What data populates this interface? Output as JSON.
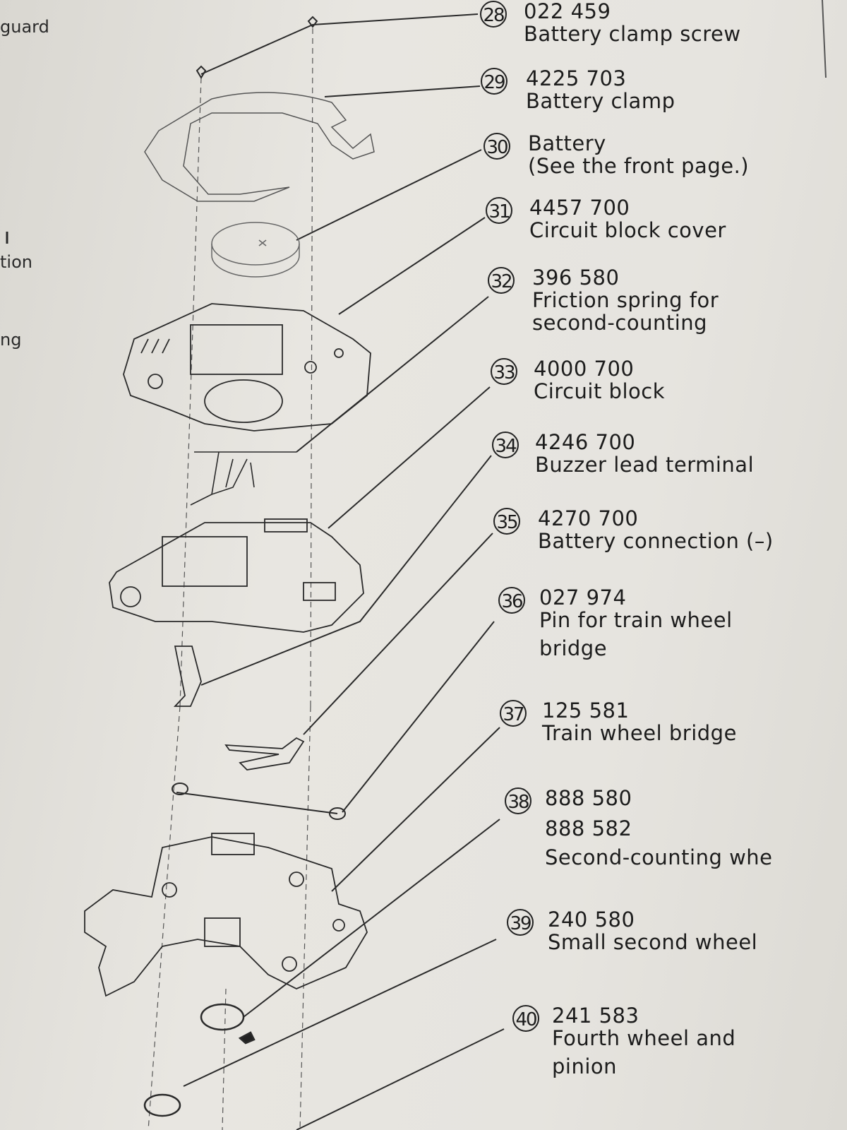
{
  "margin_fragments": [
    "guard",
    "tion",
    "ng"
  ],
  "parts": [
    {
      "ref": "28",
      "codes": [
        "022 459"
      ],
      "name": [
        "Battery clamp screw"
      ]
    },
    {
      "ref": "29",
      "codes": [
        "4225 703"
      ],
      "name": [
        "Battery clamp"
      ]
    },
    {
      "ref": "30",
      "codes": [
        "Battery"
      ],
      "name": [
        "(See the front page.)"
      ]
    },
    {
      "ref": "31",
      "codes": [
        "4457 700"
      ],
      "name": [
        "Circuit block cover"
      ]
    },
    {
      "ref": "32",
      "codes": [
        "396 580"
      ],
      "name": [
        "Friction spring for",
        "second-counting"
      ]
    },
    {
      "ref": "33",
      "codes": [
        "4000 700"
      ],
      "name": [
        "Circuit block"
      ]
    },
    {
      "ref": "34",
      "codes": [
        "4246 700"
      ],
      "name": [
        "Buzzer lead terminal"
      ]
    },
    {
      "ref": "35",
      "codes": [
        "4270 700"
      ],
      "name": [
        "Battery connection (–)"
      ]
    },
    {
      "ref": "36",
      "codes": [
        "027 974"
      ],
      "name": [
        "Pin for train wheel",
        "bridge"
      ]
    },
    {
      "ref": "37",
      "codes": [
        "125 581"
      ],
      "name": [
        "Train wheel bridge"
      ]
    },
    {
      "ref": "38",
      "codes": [
        "888 580",
        "888 582"
      ],
      "name": [
        "Second-counting whe"
      ]
    },
    {
      "ref": "39",
      "codes": [
        "240 580"
      ],
      "name": [
        "Small second wheel"
      ]
    },
    {
      "ref": "40",
      "codes": [
        "241 583"
      ],
      "name": [
        "Fourth wheel and",
        "pinion"
      ]
    }
  ]
}
